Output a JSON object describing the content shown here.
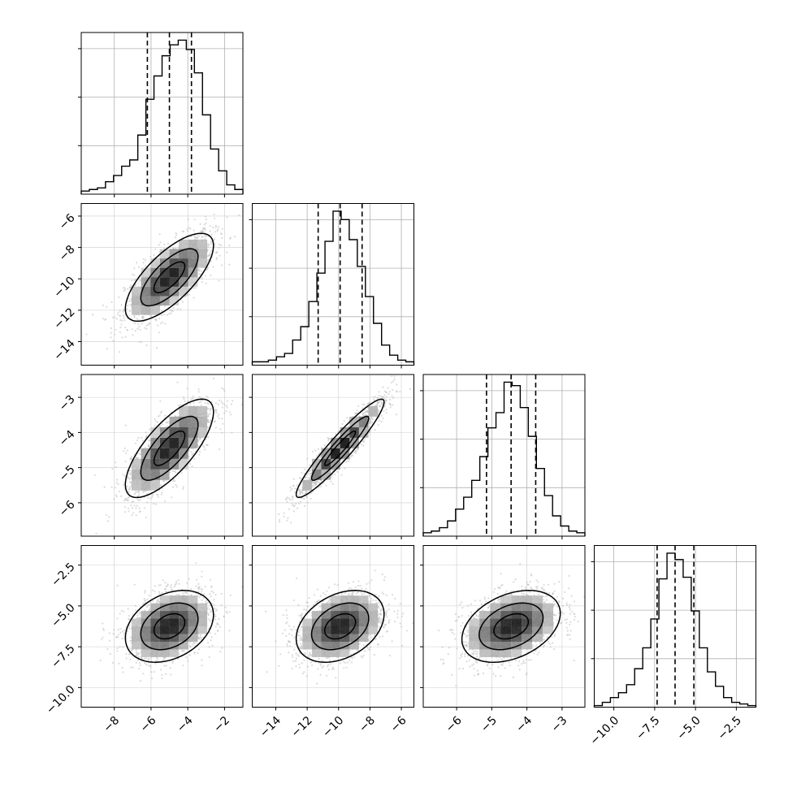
{
  "chart_data": {
    "type": "corner",
    "n_params": 4,
    "grid": true,
    "hist_line_color": "#000000",
    "quantile_line_color": "#000000",
    "contour_color": "#000000",
    "sample_color": "#bdbdbd",
    "params": [
      {
        "range": [
          -9.8,
          -1.0
        ],
        "ticks": [
          "−8",
          "−6",
          "−4",
          "−2"
        ],
        "tick_values": [
          -8,
          -6,
          -4,
          -2
        ],
        "quantiles": [
          -6.2,
          -5.0,
          -3.8
        ],
        "hist_bin_edges": [
          -9.8,
          -9.36,
          -8.92,
          -8.48,
          -8.04,
          -7.6,
          -7.16,
          -6.72,
          -6.28,
          -5.84,
          -5.4,
          -4.96,
          -4.52,
          -4.08,
          -3.64,
          -3.2,
          -2.76,
          -2.32,
          -1.88,
          -1.44,
          -1.0
        ],
        "hist_values": [
          2,
          3,
          4,
          8,
          12,
          18,
          22,
          38,
          61,
          76,
          89,
          96,
          99,
          93,
          78,
          51,
          29,
          15,
          6,
          3
        ]
      },
      {
        "range": [
          -15.5,
          -5.2
        ],
        "ticks": [
          "−14",
          "−12",
          "−10",
          "−8",
          "−6"
        ],
        "tick_values": [
          -14,
          -12,
          -10,
          -8,
          -6
        ],
        "quantiles": [
          -11.3,
          -9.9,
          -8.5
        ],
        "hist_bin_edges": [
          -15.5,
          -14.985,
          -14.47,
          -13.955,
          -13.44,
          -12.925,
          -12.41,
          -11.895,
          -11.38,
          -10.865,
          -10.35,
          -9.835,
          -9.32,
          -8.805,
          -8.29,
          -7.775,
          -7.26,
          -6.745,
          -6.23,
          -5.715,
          -5.2
        ],
        "hist_values": [
          2,
          2,
          3,
          5,
          7,
          15,
          23,
          38,
          55,
          74,
          92,
          87,
          75,
          59,
          41,
          25,
          12,
          6,
          3,
          2
        ]
      },
      {
        "range": [
          -6.95,
          -2.35
        ],
        "ticks": [
          "−6",
          "−5",
          "−4",
          "−3"
        ],
        "tick_values": [
          -6,
          -5,
          -4,
          -3
        ],
        "quantiles": [
          -5.15,
          -4.45,
          -3.75
        ],
        "hist_bin_edges": [
          -6.95,
          -6.72,
          -6.49,
          -6.26,
          -6.03,
          -5.8,
          -5.57,
          -5.34,
          -5.11,
          -4.88,
          -4.65,
          -4.42,
          -4.19,
          -3.96,
          -3.73,
          -3.5,
          -3.27,
          -3.04,
          -2.81,
          -2.58,
          -2.35
        ],
        "hist_values": [
          2,
          3,
          5,
          9,
          16,
          23,
          33,
          47,
          64,
          73,
          91,
          89,
          76,
          59,
          40,
          24,
          12,
          6,
          3,
          2
        ]
      },
      {
        "range": [
          -11.2,
          -1.3
        ],
        "ticks": [
          "−10.0",
          "−7.5",
          "−5.0",
          "−2.5"
        ],
        "tick_values": [
          -10,
          -7.5,
          -5,
          -2.5
        ],
        "left_ticks": [
          "−2.5",
          "−5.0",
          "−7.5",
          "−10.0"
        ],
        "left_tick_values": [
          -2.5,
          -5,
          -7.5,
          -10
        ],
        "quantiles": [
          -7.35,
          -6.25,
          -5.1
        ],
        "hist_bin_edges": [
          -11.2,
          -10.705,
          -10.21,
          -9.715,
          -9.22,
          -8.725,
          -8.23,
          -7.735,
          -7.24,
          -6.745,
          -6.25,
          -5.755,
          -5.26,
          -4.765,
          -4.27,
          -3.775,
          -3.28,
          -2.785,
          -2.29,
          -1.795,
          -1.3
        ],
        "hist_values": [
          1,
          3,
          6,
          9,
          14,
          24,
          37,
          55,
          80,
          96,
          92,
          81,
          60,
          37,
          22,
          13,
          6,
          3,
          2,
          1
        ]
      }
    ],
    "pairs": [
      {
        "x_param": 0,
        "y_param": 1,
        "mean": [
          -5.0,
          -9.9
        ],
        "std": [
          1.2,
          1.4
        ],
        "corr": 0.72
      },
      {
        "x_param": 0,
        "y_param": 2,
        "mean": [
          -5.0,
          -4.45
        ],
        "std": [
          1.2,
          0.7
        ],
        "corr": 0.74
      },
      {
        "x_param": 1,
        "y_param": 2,
        "mean": [
          -9.9,
          -4.45
        ],
        "std": [
          1.4,
          0.7
        ],
        "corr": 0.94
      },
      {
        "x_param": 0,
        "y_param": 3,
        "mean": [
          -5.0,
          -6.25
        ],
        "std": [
          1.2,
          1.1
        ],
        "corr": 0.32
      },
      {
        "x_param": 1,
        "y_param": 3,
        "mean": [
          -9.9,
          -6.25
        ],
        "std": [
          1.4,
          1.1
        ],
        "corr": 0.34
      },
      {
        "x_param": 2,
        "y_param": 3,
        "mean": [
          -4.45,
          -6.25
        ],
        "std": [
          0.7,
          1.1
        ],
        "corr": 0.36
      }
    ],
    "contour_sigma_levels": [
      0.7,
      1.3,
      2.0
    ]
  }
}
